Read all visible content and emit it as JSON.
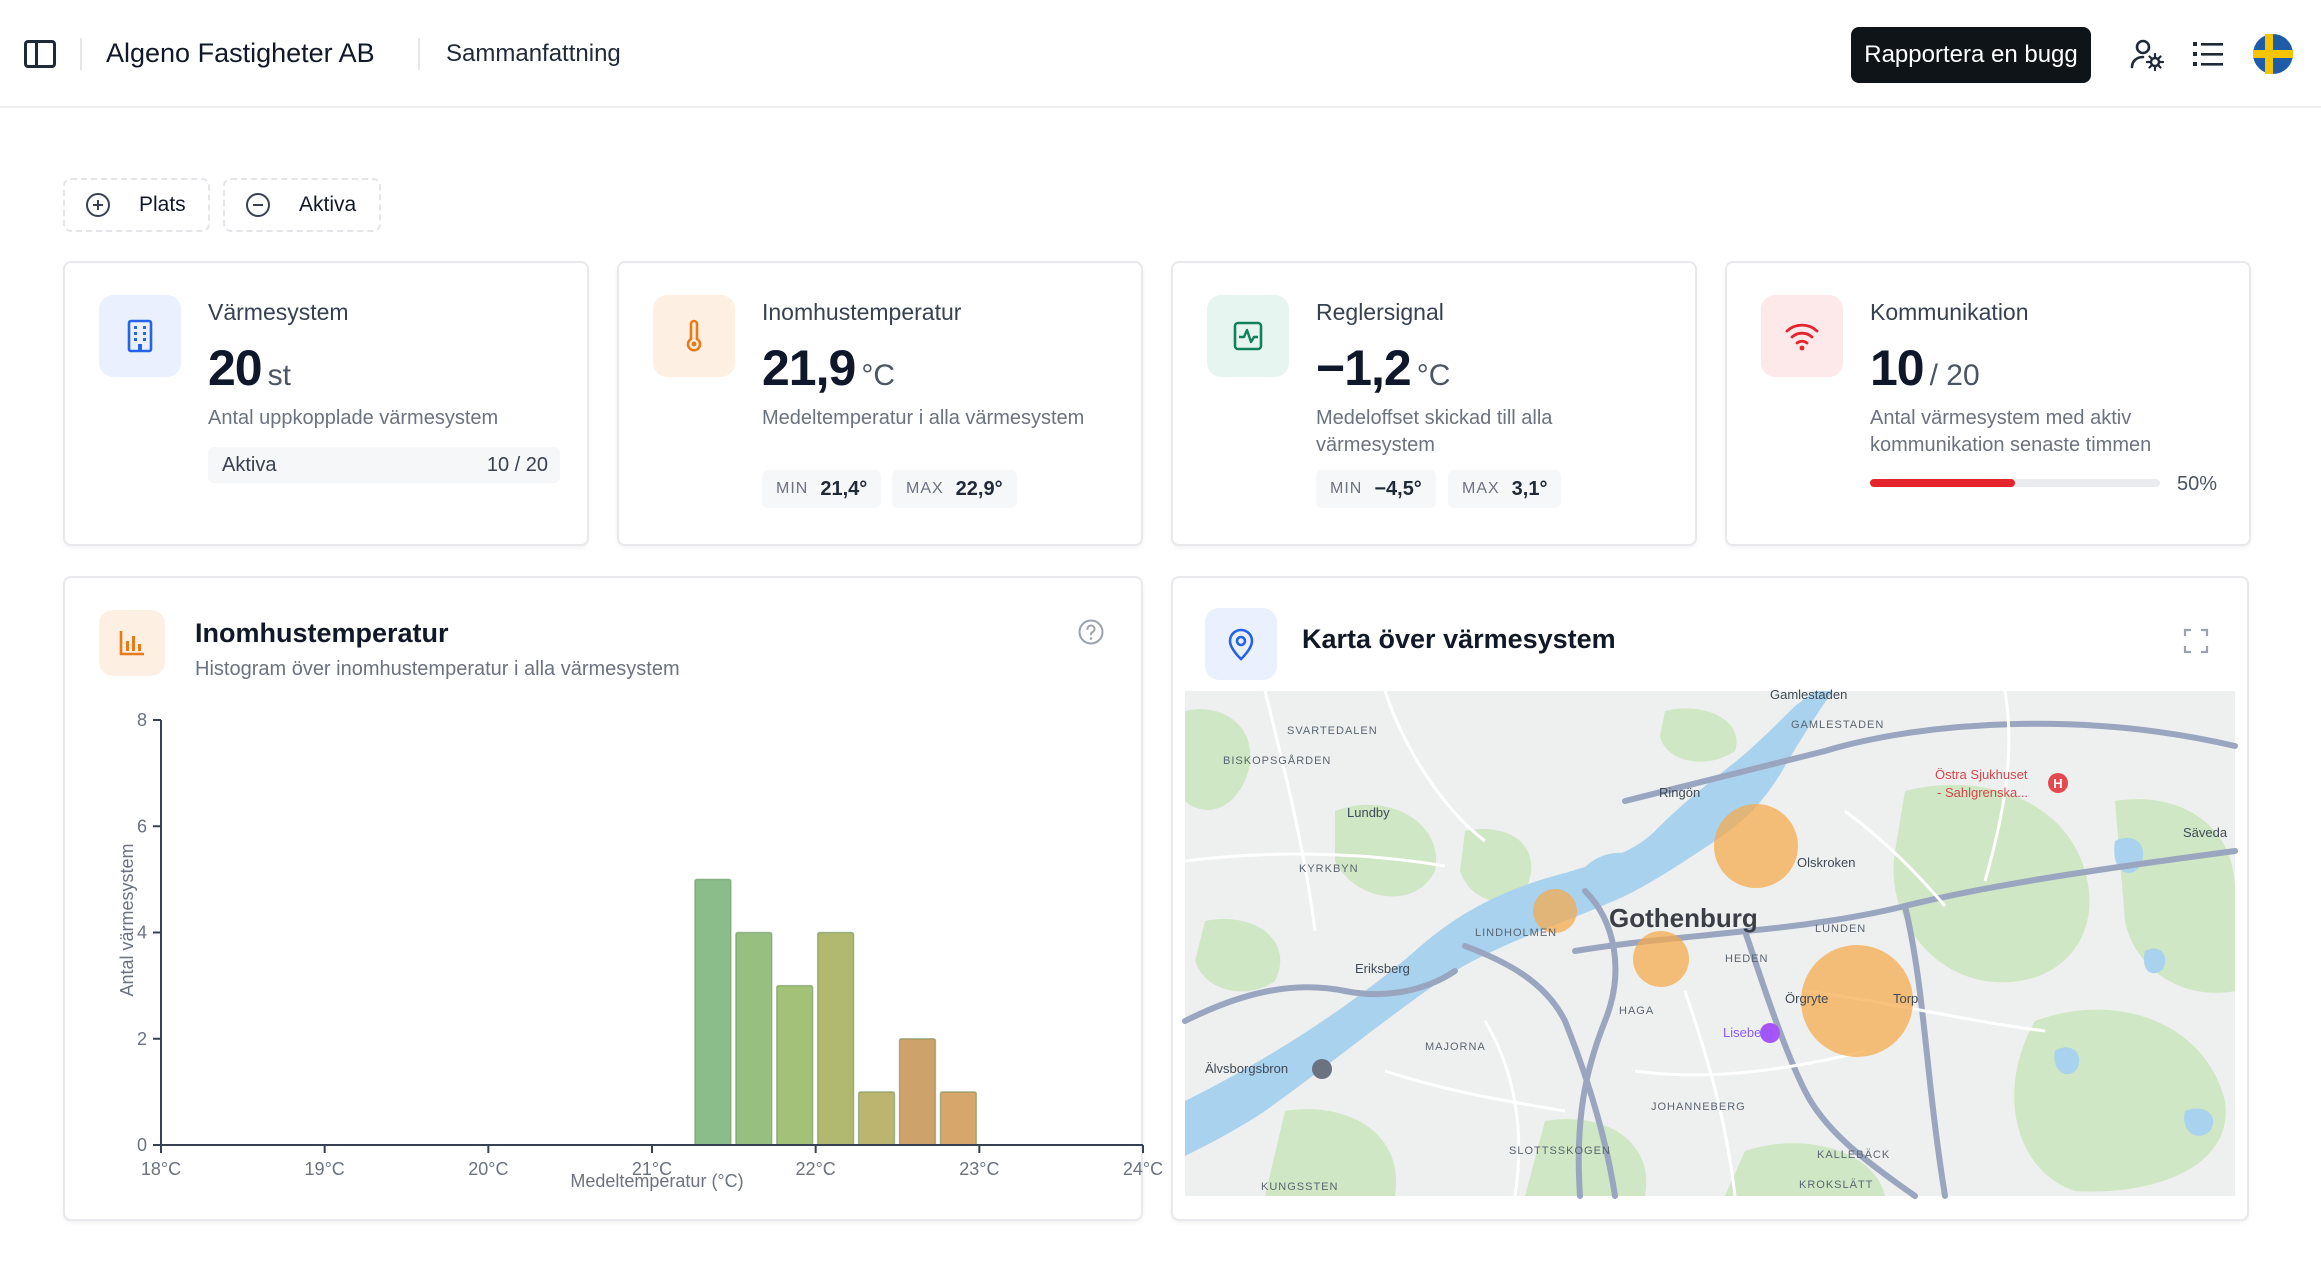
{
  "header": {
    "org_name": "Algeno Fastigheter AB",
    "breadcrumb": "Sammanfattning",
    "report_bug_label": "Rapportera en bugg"
  },
  "filters": [
    {
      "label": "Plats"
    },
    {
      "label": "Aktiva"
    }
  ],
  "stats": {
    "heating": {
      "title": "Värmesystem",
      "value": "20",
      "unit": "st",
      "description": "Antal uppkopplade värmesystem",
      "active_label": "Aktiva",
      "active_value": "10 / 20"
    },
    "indoor": {
      "title": "Inomhustemperatur",
      "value": "21,9",
      "unit": "°C",
      "description": "Medeltemperatur i alla värmesystem",
      "min_label": "MIN",
      "min_value": "21,4°",
      "max_label": "MAX",
      "max_value": "22,9°"
    },
    "control": {
      "title": "Reglersignal",
      "value": "−1,2",
      "unit": "°C",
      "description": "Medeloffset skickad till alla värmesystem",
      "min_label": "MIN",
      "min_value": "−4,5°",
      "max_label": "MAX",
      "max_value": "3,1°"
    },
    "communication": {
      "title": "Kommunikation",
      "value": "10",
      "unit": "/ 20",
      "description": "Antal värmesystem med aktiv kommunikation senaste timmen",
      "progress": 0.5,
      "progress_label": "50%"
    }
  },
  "histogram": {
    "title": "Inomhustemperatur",
    "subtitle": "Histogram över inomhustemperatur i alla värmesystem"
  },
  "chart_data": {
    "type": "bar",
    "xlabel": "Medeltemperatur (°C)",
    "ylabel": "Antal värmesystem",
    "xlim": [
      18,
      24
    ],
    "ylim": [
      0,
      8
    ],
    "x_ticks": [
      18,
      19,
      20,
      21,
      22,
      23,
      24
    ],
    "x_tick_labels": [
      "18°C",
      "19°C",
      "20°C",
      "21°C",
      "22°C",
      "23°C",
      "24°C"
    ],
    "y_ticks": [
      0,
      2,
      4,
      6,
      8
    ],
    "bin_width": 0.25,
    "bins": [
      {
        "x0": 21.25,
        "x1": 21.5,
        "value": 5,
        "color": "#8bbd8b"
      },
      {
        "x0": 21.5,
        "x1": 21.75,
        "value": 4,
        "color": "#97bf7f"
      },
      {
        "x0": 21.75,
        "x1": 22.0,
        "value": 3,
        "color": "#a3c277"
      },
      {
        "x0": 22.0,
        "x1": 22.25,
        "value": 4,
        "color": "#b0b96f"
      },
      {
        "x0": 22.25,
        "x1": 22.5,
        "value": 1,
        "color": "#bcb56f"
      },
      {
        "x0": 22.5,
        "x1": 22.75,
        "value": 2,
        "color": "#cda26b"
      },
      {
        "x0": 22.75,
        "x1": 23.0,
        "value": 1,
        "color": "#d6a66b"
      }
    ],
    "grid": false,
    "legend": "none"
  },
  "map_card": {
    "title": "Karta över värmesystem"
  },
  "map": {
    "city_label": "Gothenburg",
    "places": [
      "Gamlestaden",
      "GAMLESTADEN",
      "SVARTEDALEN",
      "BISKOPSGÅRDEN",
      "Ringön",
      "Östra Sjukhuset",
      "- Sahlgrenska...",
      "Lundby",
      "KYRKBYN",
      "Olskroken",
      "Säveda",
      "LINDHOLMEN",
      "LUNDEN",
      "Eriksberg",
      "HEDEN",
      "HAGA",
      "Örgryte",
      "Torp",
      "Liseberg",
      "MAJORNA",
      "Älvsborgsbron",
      "JOHANNEBERG",
      "SLOTTSSKOGEN",
      "KALLEBÄCK",
      "KUNGSSTEN",
      "KROKSLÄTT"
    ],
    "marker_color": "#f5a94a",
    "water_color": "#a9d2ee",
    "park_color": "#cfe7c4"
  },
  "icons": {
    "sidebar": "sidebar-toggle-icon",
    "user": "user-settings-icon",
    "list": "list-icon",
    "flag": "sweden-flag-icon",
    "building": "building-icon",
    "thermometer": "thermometer-icon",
    "activity": "activity-icon",
    "wifi": "wifi-icon",
    "chart": "bar-chart-icon",
    "help": "help-circle-icon",
    "pin": "map-pin-icon",
    "fullscreen": "fullscreen-icon"
  },
  "colors": {
    "accent_blue": "#2563eb",
    "accent_orange": "#ea7a17",
    "accent_green": "#12805c",
    "accent_red": "#e5252e"
  }
}
